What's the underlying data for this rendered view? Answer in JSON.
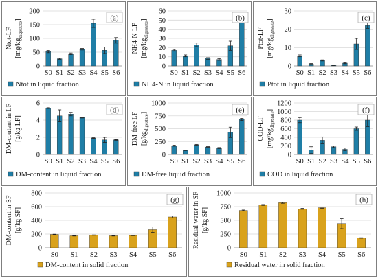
{
  "colors": {
    "liquid": "#1f7ea6",
    "solid": "#d9a21c",
    "grid": "#d9d9d9",
    "frame": "#7f7f7f",
    "error": "#222222"
  },
  "chart_data": [
    {
      "id": "a",
      "letter": "(a)",
      "type": "bar",
      "ylabel": [
        "Ntot-LF",
        "[mg/kg",
        "digestate",
        "]"
      ],
      "categories": [
        "S0",
        "S1",
        "S2",
        "S3",
        "S4",
        "S5",
        "S6"
      ],
      "ylim": [
        0,
        200
      ],
      "yticks": [
        0,
        50,
        100,
        150,
        200
      ],
      "values": [
        52,
        26,
        44,
        61,
        155,
        57,
        93
      ],
      "errors": [
        4,
        2,
        3,
        3,
        15,
        12,
        10
      ],
      "legend": "Ntot in liquid fraction",
      "color": "liquid",
      "grid": true,
      "legend_position": "bottom"
    },
    {
      "id": "b",
      "letter": "(b)",
      "type": "bar",
      "ylabel": [
        "NH4-N-LF",
        "[mg/kg",
        "digestate",
        "]"
      ],
      "categories": [
        "S0",
        "S1",
        "S2",
        "S3",
        "S4",
        "S5",
        "S6"
      ],
      "ylim": [
        0,
        60
      ],
      "yticks": [
        0,
        10,
        20,
        30,
        40,
        50,
        60
      ],
      "values": [
        17,
        11,
        23,
        8,
        7,
        22,
        53
      ],
      "errors": [
        1,
        1,
        2,
        1,
        1,
        5,
        1.5
      ],
      "legend": "NH4-N in liquid fraction",
      "color": "liquid",
      "grid": true,
      "legend_position": "bottom"
    },
    {
      "id": "c",
      "letter": "(c)",
      "type": "bar",
      "ylabel": [
        "Ptot-LF",
        "[mg/kg",
        "digestate",
        "]"
      ],
      "categories": [
        "S0",
        "S1",
        "S2",
        "S3",
        "S4",
        "S5",
        "S6"
      ],
      "ylim": [
        0,
        30
      ],
      "yticks": [
        0,
        10,
        20,
        30
      ],
      "values": [
        5.5,
        1,
        3,
        0.3,
        1.5,
        12,
        22
      ],
      "errors": [
        0.5,
        0.3,
        0.3,
        0.1,
        0.3,
        3,
        1.5
      ],
      "legend": "Ptot in liquid fraction",
      "color": "liquid",
      "grid": true,
      "legend_position": "bottom"
    },
    {
      "id": "d",
      "letter": "(d)",
      "type": "bar",
      "ylabel": [
        "DM-content in LF",
        "[g/kg LF]"
      ],
      "categories": [
        "S0",
        "S1",
        "S2",
        "S3",
        "S4",
        "S5",
        "S6"
      ],
      "ylim": [
        0,
        6
      ],
      "yticks": [
        0,
        2,
        4,
        6
      ],
      "values": [
        5.4,
        4.5,
        4.7,
        4.3,
        1.9,
        1.7,
        1.7
      ],
      "errors": [
        0.05,
        0.7,
        0.2,
        0.05,
        0.05,
        0.3,
        0.05
      ],
      "legend": "DM-content in liquid fraction",
      "color": "liquid",
      "grid": true,
      "legend_position": "bottom"
    },
    {
      "id": "e",
      "letter": "(e)",
      "type": "bar",
      "ylabel": [
        "DM-free LF",
        "[g/kg",
        "digestate",
        "]"
      ],
      "categories": [
        "S0",
        "S1",
        "S2",
        "S3",
        "S4",
        "S5",
        "S6"
      ],
      "ylim": [
        0,
        1000
      ],
      "yticks": [
        0,
        250,
        500,
        750,
        1000
      ],
      "values": [
        170,
        80,
        185,
        145,
        125,
        430,
        680
      ],
      "errors": [
        10,
        5,
        10,
        10,
        10,
        100,
        20
      ],
      "legend": "DM-free liquid fraction",
      "color": "liquid",
      "grid": true,
      "legend_position": "bottom"
    },
    {
      "id": "f",
      "letter": "(f)",
      "type": "bar",
      "ylabel": [
        "COD-LF",
        "[mg/kg",
        "digestate",
        "]"
      ],
      "categories": [
        "S0",
        "S1",
        "S2",
        "S3",
        "S4",
        "S5",
        "S6"
      ],
      "ylim": [
        0,
        1200
      ],
      "yticks": [
        0,
        200,
        400,
        600,
        800,
        1000,
        1200
      ],
      "values": [
        800,
        100,
        330,
        180,
        120,
        600,
        800
      ],
      "errors": [
        60,
        80,
        80,
        20,
        30,
        40,
        150
      ],
      "legend": "COD in liquid fraction",
      "color": "liquid",
      "grid": true,
      "legend_position": "bottom"
    },
    {
      "id": "g",
      "letter": "(g)",
      "type": "bar",
      "ylabel": [
        "DM-content in SF",
        "[g/kg SF]"
      ],
      "categories": [
        "S0",
        "S1",
        "S2",
        "S3",
        "S4",
        "S5",
        "S6"
      ],
      "ylim": [
        0,
        800
      ],
      "yticks": [
        0,
        200,
        400,
        600,
        800
      ],
      "values": [
        195,
        175,
        185,
        175,
        180,
        265,
        450
      ],
      "errors": [
        3,
        3,
        3,
        3,
        3,
        40,
        15
      ],
      "legend": "DM-content in solid fraction",
      "color": "solid",
      "grid": true,
      "legend_position": "bottom"
    },
    {
      "id": "h",
      "letter": "(h)",
      "type": "bar",
      "ylabel": [
        "Residual water in SF",
        "[g/kg SF]"
      ],
      "categories": [
        "S0",
        "S1",
        "S2",
        "S3",
        "S4",
        "S5",
        "S6"
      ],
      "ylim": [
        0,
        1000
      ],
      "yticks": [
        0,
        250,
        500,
        750,
        1000
      ],
      "values": [
        680,
        780,
        820,
        710,
        730,
        440,
        180
      ],
      "errors": [
        8,
        8,
        10,
        8,
        10,
        90,
        5
      ],
      "legend": "Residual water in solid fraction",
      "color": "solid",
      "grid": true,
      "legend_position": "bottom"
    }
  ]
}
